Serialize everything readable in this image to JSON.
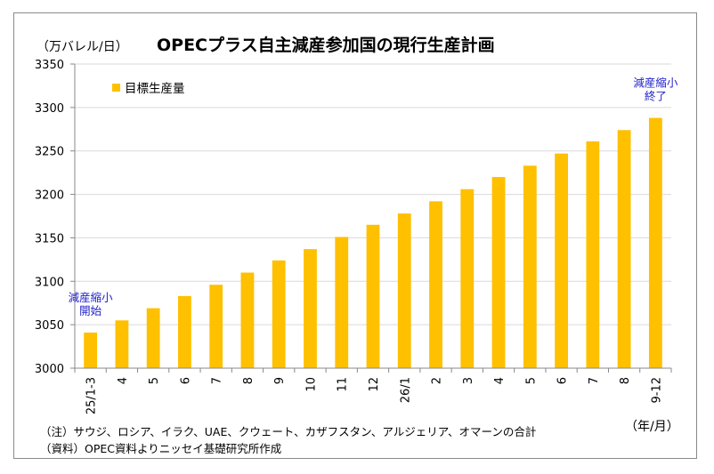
{
  "unit_label": "（万バレル/日）",
  "title": "OPECプラス自主減産参加国の現行生産計画",
  "x_unit": "（年/月）",
  "notes": {
    "note1": "（注）サウジ、ロシア、イラク、UAE、クウェート、カザフスタン、アルジェリア、オマーンの合計",
    "note2": "（資料）OPEC資料よりニッセイ基礎研究所作成"
  },
  "colors": {
    "bar": "#FFC000",
    "annotation": "#1F1FCC",
    "axis": "#888888"
  },
  "chart_data": {
    "type": "bar",
    "categories": [
      "25/1-3",
      "4",
      "5",
      "6",
      "7",
      "8",
      "9",
      "10",
      "11",
      "12",
      "26/1",
      "2",
      "3",
      "4",
      "5",
      "6",
      "7",
      "8",
      "9-12"
    ],
    "series": [
      {
        "name": "目標生産量",
        "values": [
          3041,
          3055,
          3069,
          3083,
          3096,
          3110,
          3124,
          3137,
          3151,
          3165,
          3178,
          3192,
          3206,
          3220,
          3233,
          3247,
          3261,
          3274,
          3288
        ]
      }
    ],
    "ylim": [
      3000,
      3350
    ],
    "yticks": [
      3000,
      3050,
      3100,
      3150,
      3200,
      3250,
      3300,
      3350
    ],
    "grid": true,
    "legend": "top-left",
    "annotations": [
      {
        "lines": [
          "減産縮小",
          "開始"
        ],
        "category_index": 0
      },
      {
        "lines": [
          "減産縮小",
          "終了"
        ],
        "category_index": 18
      }
    ]
  }
}
